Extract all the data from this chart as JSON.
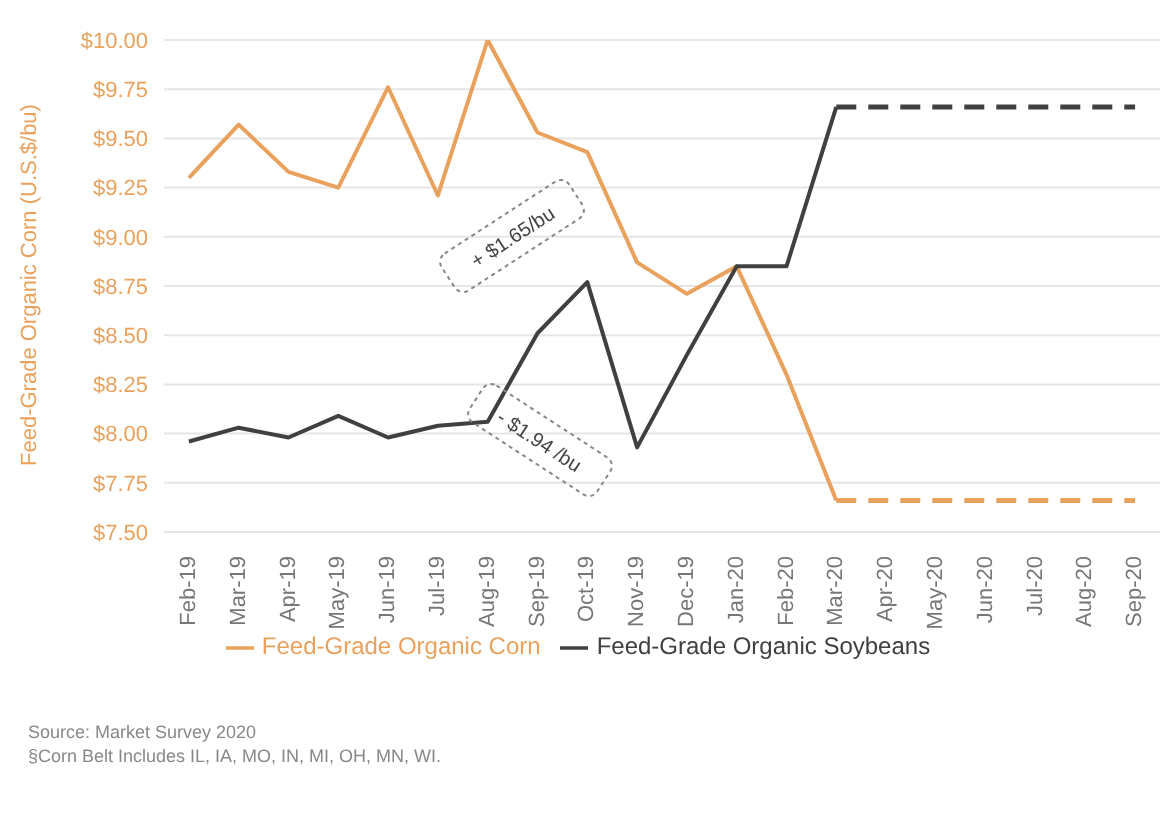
{
  "chart_data": {
    "type": "line",
    "ylabel": "Feed-Grade Organic Corn (U.S.$/bu)",
    "categories": [
      "Feb-19",
      "Mar-19",
      "Apr-19",
      "May-19",
      "Jun-19",
      "Jul-19",
      "Aug-19",
      "Sep-19",
      "Oct-19",
      "Nov-19",
      "Dec-19",
      "Jan-20",
      "Feb-20",
      "Mar-20",
      "Apr-20",
      "May-20",
      "Jun-20",
      "Jul-20",
      "Aug-20",
      "Sep-20"
    ],
    "series": [
      {
        "name": "Feed-Grade Organic Corn",
        "color": "#e9a25e",
        "line_style": "solid",
        "values": [
          9.3,
          9.57,
          9.33,
          9.25,
          9.76,
          9.21,
          10.0,
          9.53,
          9.43,
          8.87,
          8.71,
          8.85,
          8.3,
          7.66,
          null,
          null,
          null,
          null,
          null,
          null
        ]
      },
      {
        "color": "#e9a25e",
        "line_style": "dashed",
        "values": [
          null,
          null,
          null,
          null,
          null,
          null,
          null,
          null,
          null,
          null,
          null,
          null,
          null,
          7.66,
          7.66,
          7.66,
          7.66,
          7.66,
          7.66,
          7.66
        ]
      },
      {
        "name": "Feed-Grade Organic Soybeans",
        "color": "#404040",
        "line_style": "solid",
        "values": [
          7.96,
          8.03,
          7.98,
          8.09,
          7.98,
          8.04,
          8.06,
          8.51,
          8.77,
          7.93,
          8.4,
          8.85,
          8.85,
          9.66,
          null,
          null,
          null,
          null,
          null,
          null
        ]
      },
      {
        "color": "#404040",
        "line_style": "dashed",
        "values": [
          null,
          null,
          null,
          null,
          null,
          null,
          null,
          null,
          null,
          null,
          null,
          null,
          null,
          9.66,
          9.66,
          9.66,
          9.66,
          9.66,
          9.66,
          9.66
        ]
      }
    ],
    "ylim": [
      7.5,
      10
    ],
    "yticks": [
      {
        "value": 7.5,
        "label": "$7.50"
      },
      {
        "value": 7.75,
        "label": "$7.75"
      },
      {
        "value": 8,
        "label": "$8.00"
      },
      {
        "value": 8.25,
        "label": "$8.25"
      },
      {
        "value": 8.5,
        "label": "$8.50"
      },
      {
        "value": 8.75,
        "label": "$8.75"
      },
      {
        "value": 9,
        "label": "$9.00"
      },
      {
        "value": 9.25,
        "label": "$9.25"
      },
      {
        "value": 9.5,
        "label": "$9.50"
      },
      {
        "value": 9.75,
        "label": "$9.75"
      },
      {
        "value": 10,
        "label": "$10.00"
      }
    ],
    "grid": "y",
    "legend": "bottom",
    "marker": "none",
    "annotations": [
      "+ $1.65/bu",
      "- $1.94 /bu",
      "Source: Market Survey 2020",
      "§Corn Belt Includes IL, IA, MO, IN, MI, OH, MN, WI."
    ]
  }
}
